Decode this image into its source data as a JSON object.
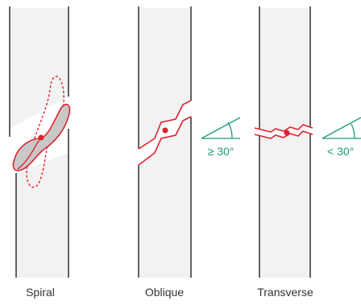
{
  "colors": {
    "bone_fill": "#f2f2f2",
    "bone_outline": "#222222",
    "fracture": "#e0202f",
    "fragment_fill": "#c8c8c8",
    "angle": "#1a9a7a",
    "caption_text": "#333333"
  },
  "fractures": [
    {
      "id": "spiral",
      "label": "Spiral"
    },
    {
      "id": "oblique",
      "label": "Oblique",
      "angle_label": "≥ 30°"
    },
    {
      "id": "transverse",
      "label": "Transverse",
      "angle_label": "< 30°"
    }
  ]
}
